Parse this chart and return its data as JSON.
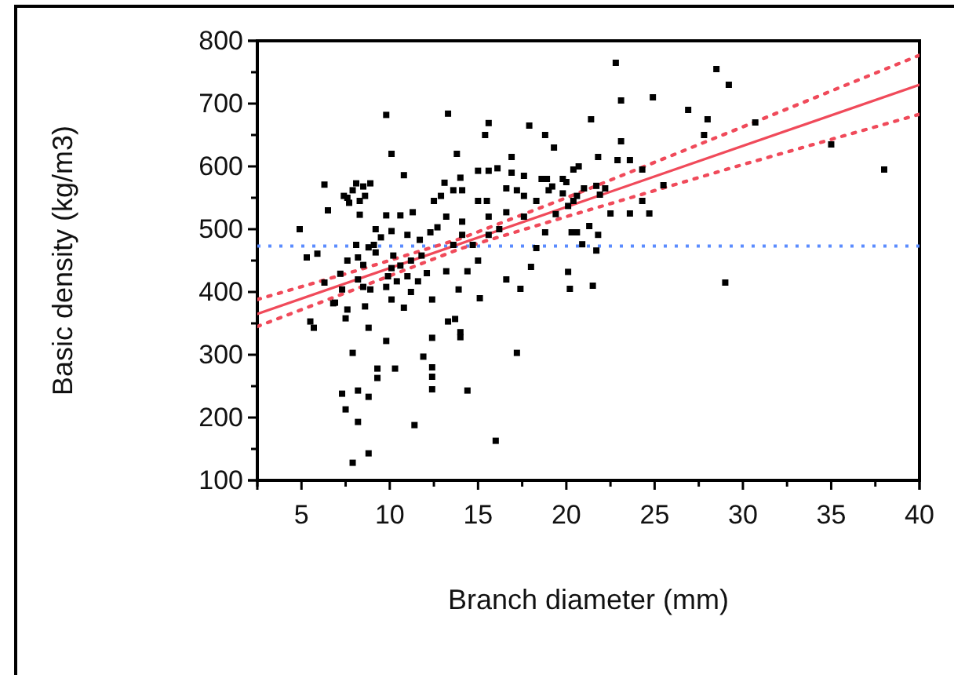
{
  "chart_data": {
    "type": "scatter",
    "xlabel": "Branch diameter (mm)",
    "ylabel": "Basic density (kg/m3)",
    "xlim": [
      2.5,
      40
    ],
    "ylim": [
      100,
      800
    ],
    "xticks": [
      {
        "value": 2.5,
        "label": null
      },
      5,
      {
        "value": 7.5,
        "label": null
      },
      10,
      {
        "value": 12.5,
        "label": null
      },
      15,
      {
        "value": 17.5,
        "label": null
      },
      20,
      {
        "value": 22.5,
        "label": null
      },
      25,
      {
        "value": 27.5,
        "label": null
      },
      30,
      {
        "value": 32.5,
        "label": null
      },
      35,
      {
        "value": 37.5,
        "label": null
      },
      40
    ],
    "yticks": [
      100,
      {
        "value": 150,
        "label": null
      },
      200,
      {
        "value": 250,
        "label": null
      },
      300,
      {
        "value": 350,
        "label": null
      },
      400,
      {
        "value": 450,
        "label": null
      },
      500,
      {
        "value": 550,
        "label": null
      },
      600,
      {
        "value": 650,
        "label": null
      },
      700,
      {
        "value": 750,
        "label": null
      },
      800
    ],
    "grid": false,
    "marker": "square",
    "ref_lines": [
      {
        "axis": "y",
        "value": 473,
        "color": "#5b8cff",
        "line_style": "dotted"
      }
    ],
    "series": [
      {
        "color": "#000000",
        "x": [
          9.8,
          13.3,
          15.6,
          15.4,
          17.9,
          18.8,
          19.3,
          10.1,
          13.8,
          10.8,
          16.9,
          6.3,
          6.5,
          7.4,
          8.1,
          8.9,
          8.3,
          4.9,
          5.3,
          5.9,
          6.3,
          6.8,
          5.5,
          5.7,
          7.5,
          7.6,
          8.6,
          8.8,
          7.9,
          9.8,
          10.3,
          9.3,
          9.3,
          7.3,
          7.5,
          8.2,
          8.8,
          8.2,
          8.8,
          7.9,
          11.4,
          16.0,
          12.4,
          11.9,
          12.4,
          12.4,
          12.4,
          13.3,
          13.7,
          14.0,
          14.0,
          14.4,
          15.1,
          17.2,
          16.6,
          17.4,
          18.0,
          20.1,
          18.3,
          18.8,
          20.3,
          20.0,
          18.6,
          17.6,
          16.9,
          16.1,
          15.0,
          15.6,
          14.0,
          14.1,
          13.6,
          13.1,
          12.9,
          12.5,
          15.0,
          15.5,
          16.6,
          17.2,
          19.0,
          19.8,
          17.6,
          18.3,
          16.6,
          17.6,
          19.4,
          20.1,
          15.6,
          13.2,
          14.1,
          11.3,
          10.6,
          9.8,
          10.1,
          9.2,
          9.5,
          9.1,
          11.0,
          11.7,
          12.3,
          12.7,
          13.6,
          14.1,
          14.7,
          15.6,
          16.2,
          15.0,
          14.4,
          13.2,
          13.9,
          12.4,
          11.2,
          10.8,
          10.1,
          9.8,
          9.9,
          8.9,
          8.5,
          8.2,
          7.6,
          8.2,
          8.5,
          8.1,
          8.8,
          9.2,
          10.2,
          10.6,
          11.2,
          11.8,
          10.1,
          10.4,
          11.0,
          11.6,
          12.1,
          6.9,
          7.3,
          7.2,
          8.3,
          8.6,
          7.9,
          7.6,
          8.5,
          7.7,
          19.8,
          20.4,
          20.6,
          18.9,
          19.2,
          22.8,
          28.5,
          29.2,
          23.1,
          24.9,
          26.9,
          28.0,
          27.8,
          30.7,
          21.4,
          23.1,
          21.8,
          22.9,
          23.6,
          20.7,
          24.3,
          25.5,
          24.3,
          22.5,
          23.6,
          24.7,
          35.0,
          38.0,
          29.0,
          20.2,
          21.5,
          21.3,
          20.6,
          21.8,
          21.7,
          20.9,
          21.0,
          21.7,
          22.2,
          21.9,
          20.4
        ],
        "values": [
          682,
          684,
          669,
          650,
          665,
          650,
          630,
          620,
          620,
          586,
          615,
          571,
          530,
          553,
          573,
          573,
          523,
          500,
          455,
          461,
          415,
          382,
          353,
          343,
          358,
          372,
          377,
          343,
          303,
          322,
          278,
          278,
          263,
          238,
          213,
          243,
          233,
          193,
          143,
          128,
          188,
          163,
          327,
          297,
          280,
          265,
          245,
          353,
          357,
          328,
          336,
          243,
          390,
          303,
          420,
          405,
          440,
          432,
          470,
          495,
          495,
          575,
          580,
          585,
          590,
          597,
          593,
          593,
          582,
          562,
          562,
          574,
          553,
          545,
          545,
          545,
          565,
          562,
          562,
          557,
          553,
          545,
          527,
          520,
          524,
          537,
          520,
          520,
          512,
          527,
          522,
          522,
          497,
          500,
          487,
          475,
          491,
          483,
          495,
          503,
          475,
          491,
          475,
          491,
          500,
          450,
          433,
          433,
          404,
          388,
          400,
          375,
          388,
          408,
          425,
          404,
          408,
          420,
          450,
          455,
          443,
          475,
          471,
          463,
          458,
          442,
          450,
          458,
          438,
          417,
          425,
          417,
          430,
          383,
          404,
          429,
          545,
          553,
          562,
          550,
          568,
          542,
          580,
          595,
          553,
          580,
          568,
          765,
          755,
          730,
          705,
          710,
          690,
          675,
          650,
          670,
          675,
          640,
          615,
          610,
          610,
          600,
          595,
          570,
          545,
          525,
          525,
          525,
          635,
          595,
          415,
          405,
          410,
          505,
          495,
          491,
          466,
          476,
          565,
          569,
          565,
          555,
          545
        ]
      },
      {
        "type": "line",
        "color": "#f04a5a",
        "line_style": "solid",
        "marker": "none",
        "x": [
          2.5,
          40
        ],
        "values": [
          365,
          730
        ]
      },
      {
        "type": "line",
        "color": "#f04a5a",
        "line_style": "dotted",
        "marker": "none",
        "x": [
          2.5,
          8,
          14,
          20,
          30,
          40
        ],
        "values": [
          388,
          433,
          485,
          550,
          663,
          777
        ]
      },
      {
        "type": "line",
        "color": "#f04a5a",
        "line_style": "dotted",
        "marker": "none",
        "x": [
          2.5,
          8,
          14,
          20,
          30,
          40
        ],
        "values": [
          345,
          404,
          469,
          520,
          603,
          683
        ]
      }
    ]
  }
}
